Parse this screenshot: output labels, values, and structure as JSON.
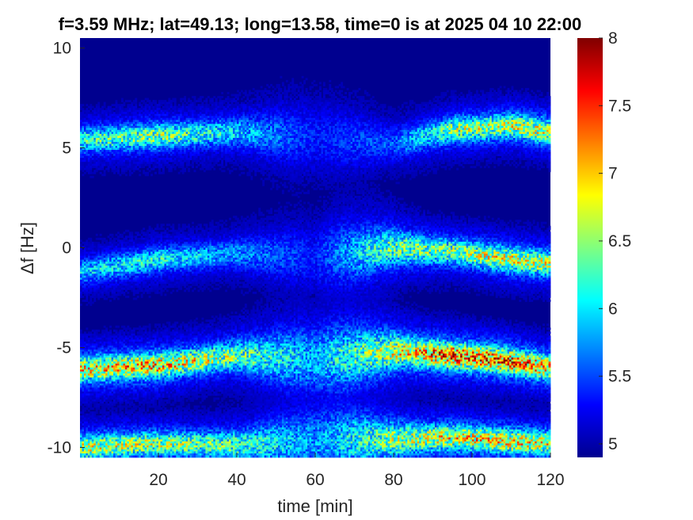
{
  "chart_data": {
    "type": "heatmap",
    "title": "f=3.59 MHz;  lat=49.13; long=13.58, time=0 is at 2025 04 10 22:00",
    "xlabel": "time [min]",
    "ylabel": "Δf [Hz]",
    "xlim": [
      0,
      120
    ],
    "ylim": [
      -10.5,
      10.5
    ],
    "xticks": [
      20,
      40,
      60,
      80,
      100,
      120
    ],
    "yticks": [
      -10,
      -5,
      0,
      5,
      10
    ],
    "clim": [
      4.9,
      8
    ],
    "colorbar_ticks": [
      5,
      5.5,
      6,
      6.5,
      7,
      7.5,
      8
    ],
    "colormap": "jet",
    "background_level": 4.95,
    "bands": [
      {
        "center_freq": [
          5.4,
          5.6,
          5.8,
          5.5,
          5.2,
          5.9,
          6.1,
          5.8
        ],
        "time": [
          0,
          20,
          40,
          60,
          80,
          95,
          110,
          120
        ],
        "peak_level": [
          6.3,
          6.6,
          6.0,
          5.4,
          5.6,
          6.6,
          6.8,
          6.9
        ]
      },
      {
        "center_freq": [
          -1.2,
          -0.6,
          -0.3,
          -0.5,
          0.0,
          -0.2,
          -0.6,
          -0.8
        ],
        "time": [
          0,
          20,
          40,
          60,
          80,
          95,
          110,
          120
        ],
        "peak_level": [
          6.0,
          6.2,
          5.8,
          5.4,
          6.5,
          6.6,
          6.9,
          6.8
        ]
      },
      {
        "center_freq": [
          -6.1,
          -5.9,
          -5.4,
          -5.6,
          -5.2,
          -5.4,
          -5.7,
          -6.0
        ],
        "time": [
          0,
          20,
          40,
          60,
          80,
          95,
          110,
          120
        ],
        "peak_level": [
          7.0,
          7.2,
          6.5,
          5.9,
          6.8,
          7.6,
          7.5,
          7.2
        ]
      },
      {
        "center_freq": [
          -10.0,
          -9.8,
          -9.9,
          -9.7,
          -9.6,
          -9.5,
          -9.7,
          -9.8
        ],
        "time": [
          0,
          20,
          40,
          60,
          80,
          95,
          110,
          120
        ],
        "peak_level": [
          6.8,
          6.7,
          6.4,
          5.8,
          6.6,
          7.0,
          7.0,
          6.9
        ]
      }
    ]
  }
}
